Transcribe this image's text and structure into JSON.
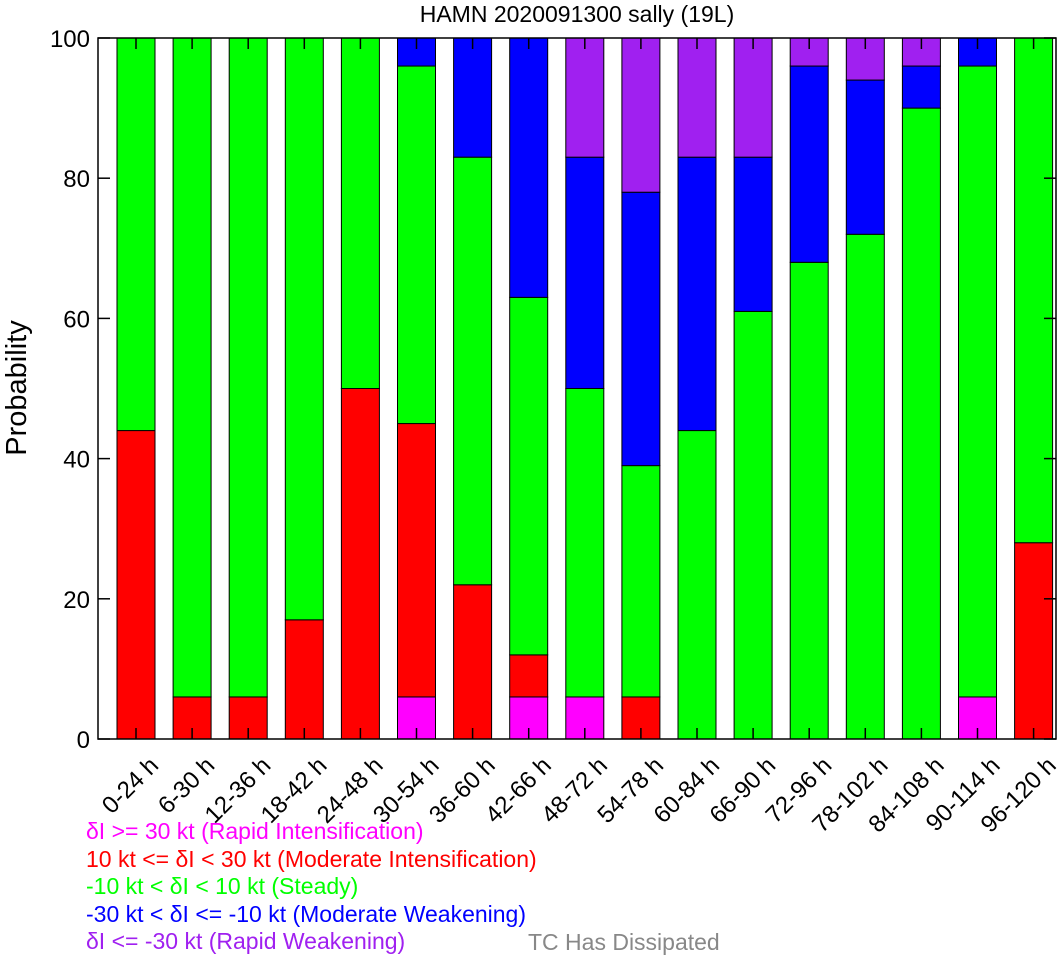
{
  "chart_data": {
    "type": "bar",
    "stacked": true,
    "title": "HAMN 2020091300 sally (19L)",
    "ylabel": "Probability",
    "ylim": [
      0,
      100
    ],
    "yticks": [
      "0",
      "20",
      "40",
      "60",
      "80",
      "100"
    ],
    "categories": [
      "0-24 h",
      "6-30 h",
      "12-36 h",
      "18-42 h",
      "24-48 h",
      "30-54 h",
      "36-60 h",
      "42-66 h",
      "48-72 h",
      "54-78 h",
      "60-84 h",
      "66-90 h",
      "72-96 h",
      "78-102 h",
      "84-108 h",
      "90-114 h",
      "96-120 h"
    ],
    "series": [
      {
        "name": "δI >= 30 kt (Rapid Intensification)",
        "color": "#ff00ff",
        "values": [
          0,
          0,
          0,
          0,
          0,
          6,
          0,
          6,
          6,
          0,
          0,
          0,
          0,
          0,
          0,
          6,
          0
        ]
      },
      {
        "name": "10 kt <= δI < 30 kt (Moderate Intensification)",
        "color": "#ff0000",
        "values": [
          44,
          6,
          6,
          17,
          50,
          39,
          22,
          6,
          0,
          6,
          0,
          0,
          0,
          0,
          0,
          0,
          28
        ]
      },
      {
        "name": "-10 kt < δI < 10 kt (Steady)",
        "color": "#00ff00",
        "values": [
          56,
          94,
          94,
          83,
          50,
          51,
          61,
          51,
          44,
          33,
          44,
          61,
          68,
          72,
          90,
          90,
          72
        ]
      },
      {
        "name": "-30 kt < δI <= -10 kt (Moderate Weakening)",
        "color": "#0000ff",
        "values": [
          0,
          0,
          0,
          0,
          0,
          4,
          17,
          37,
          33,
          39,
          39,
          22,
          28,
          22,
          6,
          4,
          0
        ]
      },
      {
        "name": "δI <= -30 kt (Rapid Weakening)",
        "color": "#a020f0",
        "values": [
          0,
          0,
          0,
          0,
          0,
          0,
          0,
          0,
          17,
          22,
          17,
          17,
          4,
          6,
          4,
          0,
          0
        ]
      }
    ],
    "dissipated_label": "TC Has Dissipated",
    "dissipated_color": "#888888"
  }
}
